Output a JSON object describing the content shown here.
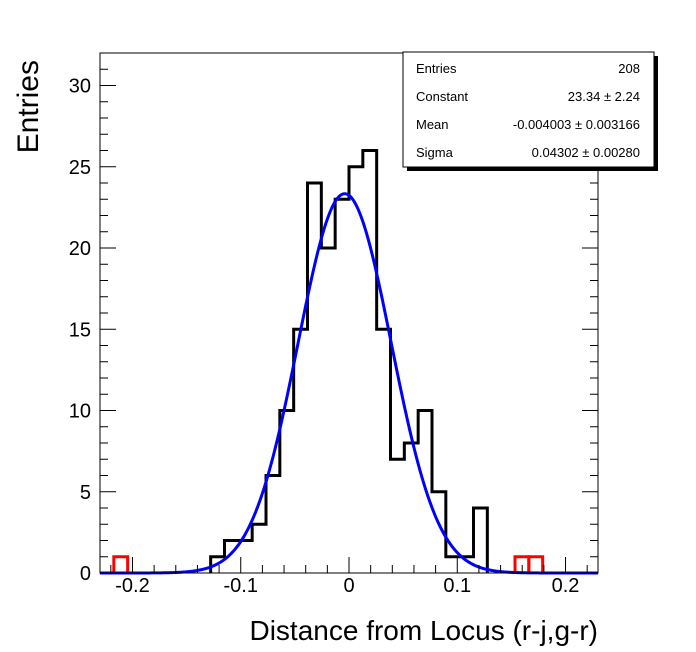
{
  "chart_data": {
    "type": "bar",
    "title": "",
    "xlabel": "Distance from Locus (r-j,g-r)",
    "ylabel": "Entries",
    "xlim": [
      -0.23,
      0.23
    ],
    "ylim": [
      0,
      32
    ],
    "nbins": 36,
    "xticks": [
      -0.2,
      -0.1,
      0,
      0.1,
      0.2
    ],
    "xtick_labels": [
      "-0.2",
      "-0.1",
      "0",
      "0.1",
      "0.2"
    ],
    "yticks": [
      0,
      5,
      10,
      15,
      20,
      25,
      30
    ],
    "ytick_labels": [
      "0",
      "5",
      "10",
      "15",
      "20",
      "25",
      "30"
    ],
    "series": [
      {
        "name": "main",
        "color": "#000000",
        "first_bin": 8,
        "values": [
          1,
          2,
          2,
          3,
          6,
          10,
          15,
          24,
          20,
          23,
          25,
          26,
          15,
          7,
          8,
          10,
          5,
          1,
          1,
          4
        ]
      },
      {
        "name": "outliers",
        "color": "#ff0000",
        "bins": [
          1,
          30,
          31
        ],
        "values": [
          1,
          1,
          1
        ]
      }
    ],
    "fit": {
      "type": "gaussian",
      "color": "#0000ff",
      "constant": 23.34,
      "mean": -0.004003,
      "sigma": 0.04302
    },
    "stats_box": {
      "rows": [
        {
          "label": "Entries",
          "value": "208"
        },
        {
          "label": "Constant",
          "value": "23.34 ± 2.24"
        },
        {
          "label": "Mean",
          "value": "-0.004003 ± 0.003166"
        },
        {
          "label": "Sigma",
          "value": "0.04302 ± 0.00280"
        }
      ]
    }
  }
}
